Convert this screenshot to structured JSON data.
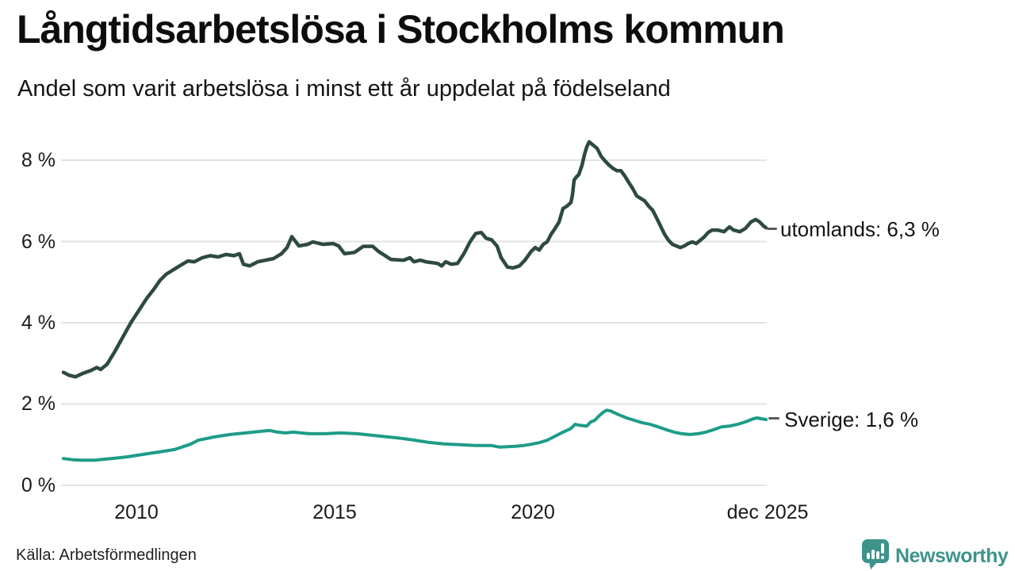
{
  "header": {
    "title": "Långtidsarbetslösa i Stockholms kommun",
    "subtitle": "Andel som varit arbetslösa i minst ett år uppdelat på födelseland"
  },
  "footer": {
    "source": "Källa: Arbetsförmedlingen",
    "brand_name": "Newsworthy"
  },
  "colors": {
    "line_utomlands": "#2d4a40",
    "line_sverige": "#1d9c88",
    "grid": "#e3e3e3",
    "text": "#1a1a1a",
    "brand_teal": "#3c938a",
    "annotation_dash": "#5a5a5a"
  },
  "chart_data": {
    "type": "line",
    "title": "Långtidsarbetslösa i Stockholms kommun",
    "subtitle": "Andel som varit arbetslösa i minst ett år uppdelat på födelseland",
    "xlabel": "",
    "ylabel": "",
    "xlim": [
      2008.1,
      2025.9
    ],
    "ylim": [
      0,
      8
    ],
    "grid": true,
    "legend_position": "right-of-line-end",
    "y_ticks": [
      {
        "v": 0,
        "label": "0 %"
      },
      {
        "v": 2,
        "label": "2 %"
      },
      {
        "v": 4,
        "label": "4 %"
      },
      {
        "v": 6,
        "label": "6 %"
      },
      {
        "v": 8,
        "label": "8 %"
      }
    ],
    "x_ticks": [
      {
        "v": 2010,
        "label": "2010"
      },
      {
        "v": 2015,
        "label": "2015"
      },
      {
        "v": 2020,
        "label": "2020"
      },
      {
        "v": 2025.92,
        "label": "dec 2025"
      }
    ],
    "series": [
      {
        "name": "utomlands",
        "label": "utomlands: 6,3 %",
        "end_value": "6,3 %",
        "color": "#2d4a40",
        "width": 4.5,
        "points": [
          [
            2008.16,
            2.78
          ],
          [
            2008.3,
            2.71
          ],
          [
            2008.46,
            2.67
          ],
          [
            2008.66,
            2.76
          ],
          [
            2008.86,
            2.83
          ],
          [
            2009.0,
            2.9
          ],
          [
            2009.1,
            2.85
          ],
          [
            2009.26,
            2.98
          ],
          [
            2009.46,
            3.3
          ],
          [
            2009.66,
            3.65
          ],
          [
            2009.86,
            4.0
          ],
          [
            2010.06,
            4.3
          ],
          [
            2010.26,
            4.6
          ],
          [
            2010.46,
            4.85
          ],
          [
            2010.6,
            5.05
          ],
          [
            2010.76,
            5.2
          ],
          [
            2010.96,
            5.32
          ],
          [
            2011.16,
            5.44
          ],
          [
            2011.3,
            5.52
          ],
          [
            2011.46,
            5.5
          ],
          [
            2011.66,
            5.6
          ],
          [
            2011.86,
            5.65
          ],
          [
            2012.06,
            5.62
          ],
          [
            2012.26,
            5.68
          ],
          [
            2012.46,
            5.65
          ],
          [
            2012.6,
            5.7
          ],
          [
            2012.7,
            5.44
          ],
          [
            2012.86,
            5.4
          ],
          [
            2013.06,
            5.5
          ],
          [
            2013.26,
            5.54
          ],
          [
            2013.46,
            5.58
          ],
          [
            2013.66,
            5.7
          ],
          [
            2013.8,
            5.85
          ],
          [
            2013.92,
            6.12
          ],
          [
            2014.1,
            5.89
          ],
          [
            2014.32,
            5.93
          ],
          [
            2014.45,
            5.99
          ],
          [
            2014.7,
            5.93
          ],
          [
            2014.96,
            5.95
          ],
          [
            2015.1,
            5.89
          ],
          [
            2015.25,
            5.7
          ],
          [
            2015.5,
            5.73
          ],
          [
            2015.72,
            5.88
          ],
          [
            2015.96,
            5.88
          ],
          [
            2016.1,
            5.76
          ],
          [
            2016.42,
            5.56
          ],
          [
            2016.74,
            5.54
          ],
          [
            2016.9,
            5.6
          ],
          [
            2017.0,
            5.5
          ],
          [
            2017.16,
            5.54
          ],
          [
            2017.3,
            5.5
          ],
          [
            2017.6,
            5.46
          ],
          [
            2017.7,
            5.4
          ],
          [
            2017.8,
            5.5
          ],
          [
            2017.94,
            5.44
          ],
          [
            2018.1,
            5.46
          ],
          [
            2018.26,
            5.7
          ],
          [
            2018.42,
            6.0
          ],
          [
            2018.56,
            6.2
          ],
          [
            2018.7,
            6.22
          ],
          [
            2018.82,
            6.08
          ],
          [
            2018.96,
            6.04
          ],
          [
            2019.1,
            5.88
          ],
          [
            2019.2,
            5.6
          ],
          [
            2019.36,
            5.37
          ],
          [
            2019.5,
            5.35
          ],
          [
            2019.66,
            5.4
          ],
          [
            2019.8,
            5.54
          ],
          [
            2019.96,
            5.76
          ],
          [
            2020.06,
            5.85
          ],
          [
            2020.16,
            5.79
          ],
          [
            2020.26,
            5.93
          ],
          [
            2020.36,
            5.99
          ],
          [
            2020.46,
            6.18
          ],
          [
            2020.56,
            6.32
          ],
          [
            2020.66,
            6.48
          ],
          [
            2020.76,
            6.81
          ],
          [
            2020.86,
            6.87
          ],
          [
            2020.96,
            6.96
          ],
          [
            2021.0,
            7.16
          ],
          [
            2021.04,
            7.51
          ],
          [
            2021.1,
            7.59
          ],
          [
            2021.16,
            7.65
          ],
          [
            2021.24,
            7.88
          ],
          [
            2021.3,
            8.13
          ],
          [
            2021.36,
            8.33
          ],
          [
            2021.42,
            8.45
          ],
          [
            2021.52,
            8.37
          ],
          [
            2021.62,
            8.29
          ],
          [
            2021.72,
            8.1
          ],
          [
            2021.82,
            7.98
          ],
          [
            2021.92,
            7.88
          ],
          [
            2022.02,
            7.8
          ],
          [
            2022.12,
            7.74
          ],
          [
            2022.22,
            7.74
          ],
          [
            2022.32,
            7.61
          ],
          [
            2022.42,
            7.45
          ],
          [
            2022.52,
            7.3
          ],
          [
            2022.62,
            7.12
          ],
          [
            2022.72,
            7.06
          ],
          [
            2022.82,
            7.0
          ],
          [
            2022.92,
            6.87
          ],
          [
            2023.02,
            6.77
          ],
          [
            2023.12,
            6.58
          ],
          [
            2023.22,
            6.38
          ],
          [
            2023.32,
            6.18
          ],
          [
            2023.42,
            6.03
          ],
          [
            2023.52,
            5.93
          ],
          [
            2023.62,
            5.89
          ],
          [
            2023.72,
            5.85
          ],
          [
            2023.82,
            5.89
          ],
          [
            2023.92,
            5.95
          ],
          [
            2024.02,
            5.99
          ],
          [
            2024.12,
            5.95
          ],
          [
            2024.22,
            6.03
          ],
          [
            2024.32,
            6.11
          ],
          [
            2024.42,
            6.22
          ],
          [
            2024.52,
            6.28
          ],
          [
            2024.66,
            6.28
          ],
          [
            2024.82,
            6.24
          ],
          [
            2024.96,
            6.36
          ],
          [
            2025.06,
            6.28
          ],
          [
            2025.22,
            6.24
          ],
          [
            2025.36,
            6.32
          ],
          [
            2025.5,
            6.48
          ],
          [
            2025.62,
            6.54
          ],
          [
            2025.72,
            6.48
          ],
          [
            2025.82,
            6.38
          ],
          [
            2025.88,
            6.34
          ]
        ]
      },
      {
        "name": "sverige",
        "label": "Sverige: 1,6 %",
        "end_value": "1,6 %",
        "color": "#1d9c88",
        "width": 4,
        "points": [
          [
            2008.16,
            0.66
          ],
          [
            2008.4,
            0.63
          ],
          [
            2008.6,
            0.62
          ],
          [
            2008.96,
            0.62
          ],
          [
            2009.36,
            0.66
          ],
          [
            2009.76,
            0.7
          ],
          [
            2010.16,
            0.76
          ],
          [
            2010.56,
            0.82
          ],
          [
            2010.96,
            0.88
          ],
          [
            2011.36,
            1.01
          ],
          [
            2011.56,
            1.11
          ],
          [
            2011.76,
            1.15
          ],
          [
            2011.96,
            1.19
          ],
          [
            2012.36,
            1.25
          ],
          [
            2012.76,
            1.29
          ],
          [
            2013.16,
            1.33
          ],
          [
            2013.36,
            1.35
          ],
          [
            2013.56,
            1.31
          ],
          [
            2013.76,
            1.29
          ],
          [
            2013.96,
            1.31
          ],
          [
            2014.36,
            1.27
          ],
          [
            2014.76,
            1.27
          ],
          [
            2015.16,
            1.29
          ],
          [
            2015.56,
            1.27
          ],
          [
            2015.76,
            1.25
          ],
          [
            2016.16,
            1.21
          ],
          [
            2016.56,
            1.17
          ],
          [
            2016.96,
            1.12
          ],
          [
            2017.36,
            1.06
          ],
          [
            2017.76,
            1.02
          ],
          [
            2018.16,
            1.0
          ],
          [
            2018.56,
            0.98
          ],
          [
            2018.96,
            0.98
          ],
          [
            2019.16,
            0.94
          ],
          [
            2019.56,
            0.96
          ],
          [
            2019.76,
            0.98
          ],
          [
            2019.96,
            1.01
          ],
          [
            2020.16,
            1.05
          ],
          [
            2020.36,
            1.11
          ],
          [
            2020.56,
            1.21
          ],
          [
            2020.76,
            1.31
          ],
          [
            2020.96,
            1.4
          ],
          [
            2021.06,
            1.5
          ],
          [
            2021.16,
            1.48
          ],
          [
            2021.36,
            1.46
          ],
          [
            2021.46,
            1.56
          ],
          [
            2021.56,
            1.6
          ],
          [
            2021.66,
            1.7
          ],
          [
            2021.76,
            1.79
          ],
          [
            2021.86,
            1.85
          ],
          [
            2021.96,
            1.83
          ],
          [
            2022.16,
            1.74
          ],
          [
            2022.36,
            1.66
          ],
          [
            2022.56,
            1.6
          ],
          [
            2022.76,
            1.54
          ],
          [
            2022.96,
            1.5
          ],
          [
            2023.16,
            1.44
          ],
          [
            2023.36,
            1.37
          ],
          [
            2023.56,
            1.31
          ],
          [
            2023.76,
            1.27
          ],
          [
            2023.96,
            1.25
          ],
          [
            2024.16,
            1.27
          ],
          [
            2024.36,
            1.31
          ],
          [
            2024.56,
            1.37
          ],
          [
            2024.76,
            1.44
          ],
          [
            2024.96,
            1.46
          ],
          [
            2025.16,
            1.5
          ],
          [
            2025.36,
            1.56
          ],
          [
            2025.56,
            1.64
          ],
          [
            2025.66,
            1.66
          ],
          [
            2025.76,
            1.64
          ],
          [
            2025.88,
            1.62
          ]
        ]
      }
    ]
  }
}
